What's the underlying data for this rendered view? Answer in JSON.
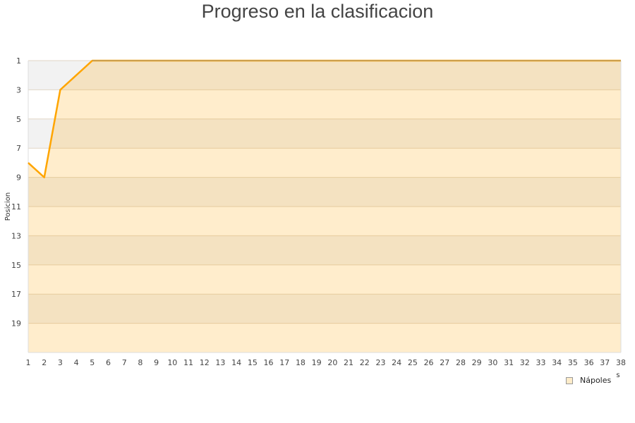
{
  "chart_data": {
    "type": "area",
    "title": "Progreso en la clasificacion",
    "ylabel": "Posicion",
    "xlabel_fragment": "s",
    "x": [
      1,
      2,
      3,
      4,
      5,
      6,
      7,
      8,
      9,
      10,
      11,
      12,
      13,
      14,
      15,
      16,
      17,
      18,
      19,
      20,
      21,
      22,
      23,
      24,
      25,
      26,
      27,
      28,
      29,
      30,
      31,
      32,
      33,
      34,
      35,
      36,
      37,
      38
    ],
    "series": [
      {
        "name": "Nápoles",
        "values": [
          8,
          9,
          3,
          2,
          1,
          1,
          1,
          1,
          1,
          1,
          1,
          1,
          1,
          1,
          1,
          1,
          1,
          1,
          1,
          1,
          1,
          1,
          1,
          1,
          1,
          1,
          1,
          1,
          1,
          1,
          1,
          1,
          1,
          1,
          1,
          1,
          1,
          1
        ]
      }
    ],
    "ylim": [
      1,
      21
    ],
    "y_inverted": true,
    "yticks": [
      1,
      3,
      5,
      7,
      9,
      11,
      13,
      15,
      17,
      19
    ],
    "xlim": [
      1,
      38
    ],
    "grid": true,
    "legend_position": "bottom-right",
    "colors": {
      "line": "#ffa500",
      "fill": "rgba(255,165,0,0.2)",
      "band": "#f2f2f2"
    }
  }
}
